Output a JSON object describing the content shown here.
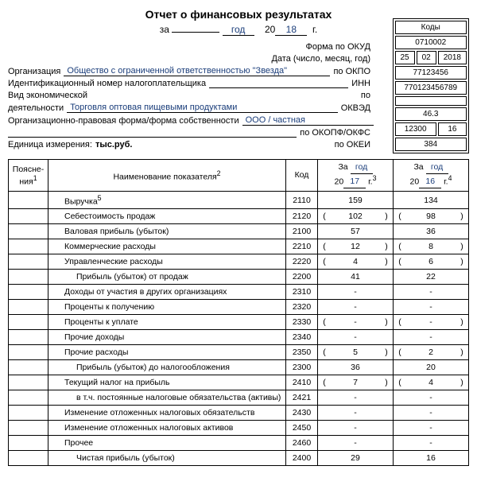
{
  "title": "Отчет о финансовых результатах",
  "subtitle_prefix": "за",
  "subtitle_period": "год",
  "subtitle_year_prefix": "20",
  "subtitle_year": "18",
  "subtitle_suffix": "г.",
  "codes_header": "Коды",
  "header": {
    "okud_label": "Форма по ОКУД",
    "okud": "0710002",
    "date_label": "Дата (число, месяц, год)",
    "date_d": "25",
    "date_m": "02",
    "date_y": "2018",
    "org_label": "Организация",
    "org_value": "Общество с ограниченной ответственностью \"Звезда\"",
    "okpo_label": "по ОКПО",
    "okpo": "77123456",
    "inn_label": "Идентификационный номер налогоплательщика",
    "inn_right": "ИНН",
    "inn": "770123456789",
    "activity_label1": "Вид экономической",
    "activity_label2": "деятельности",
    "activity_value": "Торговля оптовая пищевыми продуктами",
    "okved_label": "по",
    "okved_label2": "ОКВЭД",
    "okved": "46.3",
    "form_label": "Организационно-правовая форма/форма собственности",
    "form_value": "ООО / частная",
    "okopf_label": "по ОКОПФ/ОКФС",
    "okopf1": "12300",
    "okopf2": "16",
    "unit_label": "Единица измерения:",
    "unit_value": "тыс.руб.",
    "okei_label": "по ОКЕИ",
    "okei": "384"
  },
  "table": {
    "th_notes": "Поясне-\nния",
    "th_name": "Наименование показателя",
    "th_code": "Код",
    "th_period_prefix": "За",
    "th_period": "год",
    "th_y_prefix": "20",
    "th_y1": "17",
    "th_y2": "16",
    "th_suffix": "г.",
    "sup1": "1",
    "sup2": "2",
    "sup3": "3",
    "sup4": "4",
    "sup5": "5"
  },
  "rows": [
    {
      "name": "Выручка",
      "sup": "5",
      "code": "2110",
      "v1": "159",
      "v2": "134",
      "indent": 1
    },
    {
      "name": "Себестоимость продаж",
      "code": "2120",
      "v1": "102",
      "v2": "98",
      "paren": true,
      "indent": 1
    },
    {
      "name": "Валовая прибыль (убыток)",
      "code": "2100",
      "v1": "57",
      "v2": "36",
      "indent": 1
    },
    {
      "name": "Коммерческие расходы",
      "code": "2210",
      "v1": "12",
      "v2": "8",
      "paren": true,
      "indent": 1
    },
    {
      "name": "Управленческие расходы",
      "code": "2220",
      "v1": "4",
      "v2": "6",
      "paren": true,
      "indent": 1
    },
    {
      "name": "Прибыль (убыток) от продаж",
      "code": "2200",
      "v1": "41",
      "v2": "22",
      "indent": 2
    },
    {
      "name": "Доходы от участия в других организациях",
      "code": "2310",
      "v1": "-",
      "v2": "-",
      "indent": 1
    },
    {
      "name": "Проценты к получению",
      "code": "2320",
      "v1": "-",
      "v2": "-",
      "indent": 1
    },
    {
      "name": "Проценты к уплате",
      "code": "2330",
      "v1": "-",
      "v2": "-",
      "paren": true,
      "indent": 1
    },
    {
      "name": "Прочие доходы",
      "code": "2340",
      "v1": "-",
      "v2": "-",
      "indent": 1
    },
    {
      "name": "Прочие расходы",
      "code": "2350",
      "v1": "5",
      "v2": "2",
      "paren": true,
      "indent": 1
    },
    {
      "name": "Прибыль (убыток) до налогообложения",
      "code": "2300",
      "v1": "36",
      "v2": "20",
      "indent": 2
    },
    {
      "name": "Текущий налог на прибыль",
      "code": "2410",
      "v1": "7",
      "v2": "4",
      "paren": true,
      "indent": 1
    },
    {
      "name": "в т.ч. постоянные налоговые обязательства (активы)",
      "code": "2421",
      "v1": "-",
      "v2": "-",
      "indent": 2
    },
    {
      "name": "Изменение отложенных налоговых обязательств",
      "code": "2430",
      "v1": "-",
      "v2": "-",
      "indent": 1
    },
    {
      "name": "Изменение отложенных налоговых активов",
      "code": "2450",
      "v1": "-",
      "v2": "-",
      "indent": 1
    },
    {
      "name": "Прочее",
      "code": "2460",
      "v1": "-",
      "v2": "-",
      "indent": 1
    },
    {
      "name": "Чистая прибыль (убыток)",
      "code": "2400",
      "v1": "29",
      "v2": "16",
      "indent": 2
    }
  ],
  "colors": {
    "text": "#000000",
    "accent": "#1a3d7a",
    "border": "#000000",
    "background": "#ffffff"
  }
}
